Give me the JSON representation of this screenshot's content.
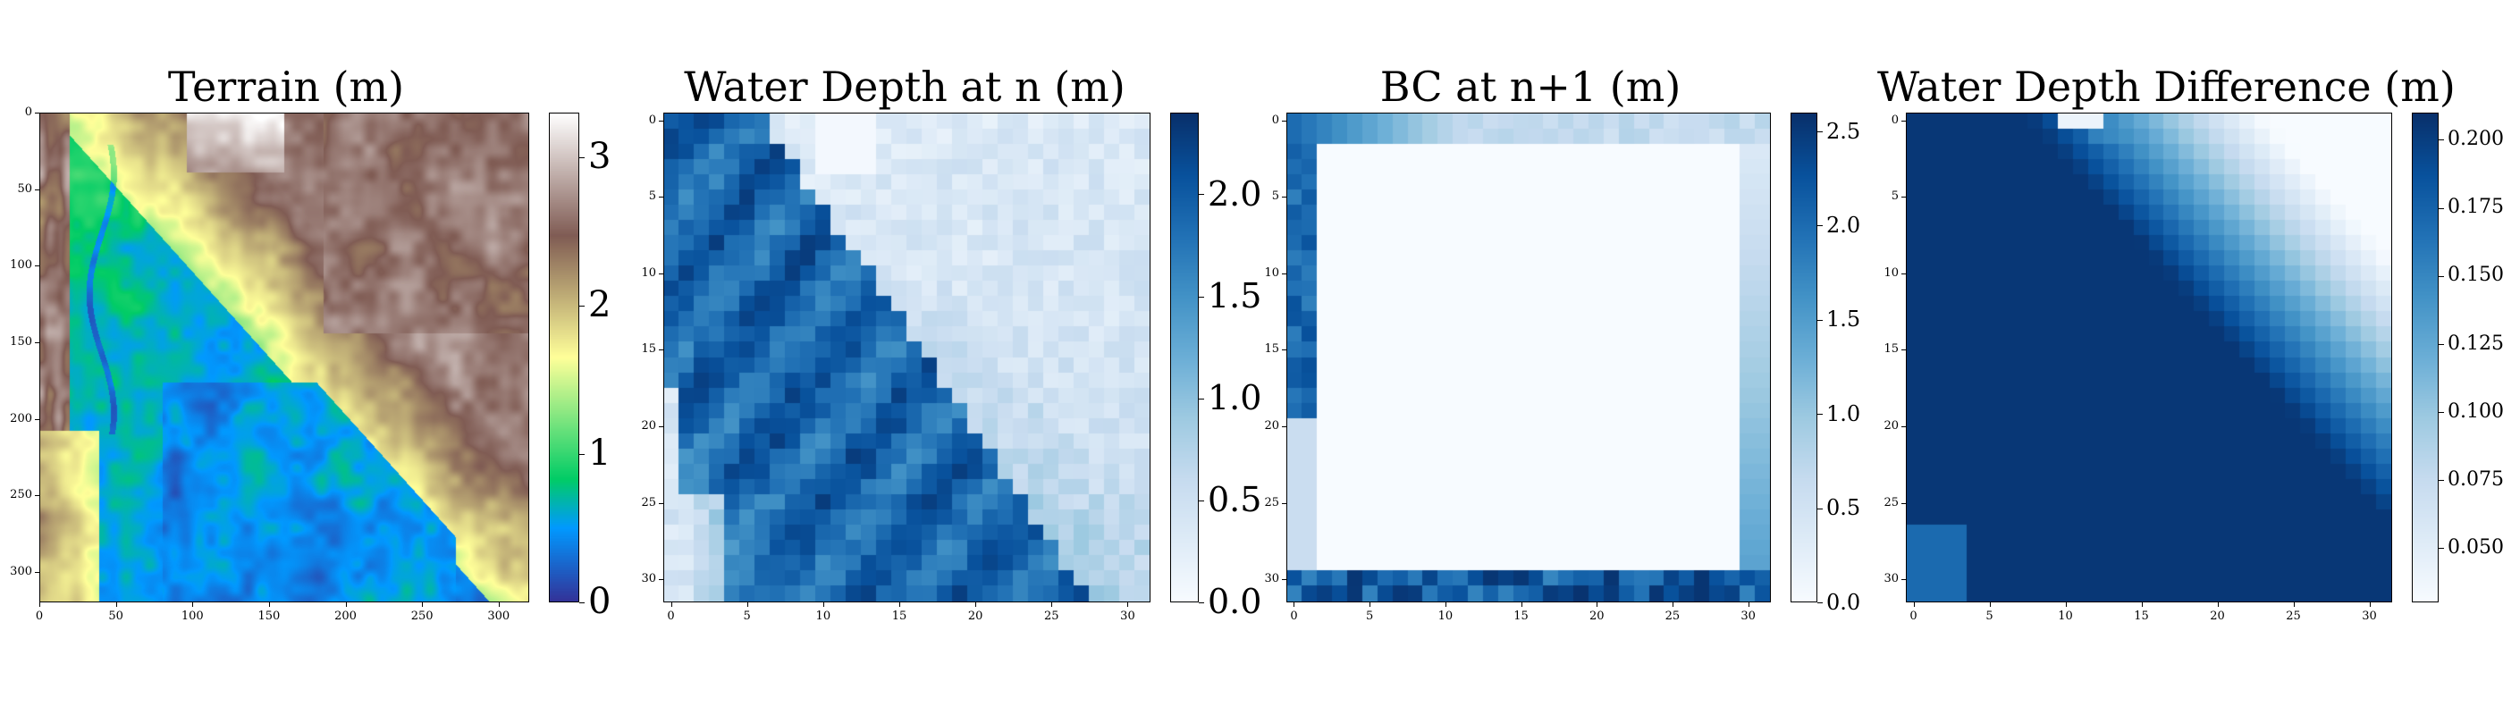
{
  "chart_data": [
    {
      "type": "heatmap",
      "title": "Terrain (m)",
      "colormap": "terrain",
      "grid_size": 320,
      "xlim": [
        0,
        320
      ],
      "ylim": [
        320,
        0
      ],
      "x_ticks": [
        "0",
        "50",
        "100",
        "150",
        "200",
        "250",
        "300"
      ],
      "y_ticks": [
        "0",
        "50",
        "100",
        "150",
        "200",
        "250",
        "300"
      ],
      "colorbar": {
        "min": 0,
        "max": 3.3,
        "ticks": [
          "0",
          "1",
          "2",
          "3"
        ],
        "tick_values": [
          0,
          1,
          2,
          3
        ]
      },
      "description_values": {
        "low_basin_depth": 0.3,
        "ridge_height": 1.6,
        "upper_right_plateau": 2.6,
        "top_peak": 3.3
      }
    },
    {
      "type": "heatmap",
      "title": "Water Depth at n (m)",
      "colormap": "Blues",
      "grid_size": 32,
      "xlim": [
        0,
        31
      ],
      "ylim": [
        31,
        0
      ],
      "x_ticks": [
        "0",
        "5",
        "10",
        "15",
        "20",
        "25",
        "30"
      ],
      "y_ticks": [
        "0",
        "5",
        "10",
        "15",
        "20",
        "25",
        "30"
      ],
      "colorbar": {
        "min": 0,
        "max": 2.4,
        "ticks": [
          "0.0",
          "0.5",
          "1.0",
          "1.5",
          "2.0"
        ],
        "tick_values": [
          0.0,
          0.5,
          1.0,
          1.5,
          2.0
        ]
      }
    },
    {
      "type": "heatmap",
      "title": "BC at n+1 (m)",
      "colormap": "Blues",
      "grid_size": 32,
      "xlim": [
        0,
        31
      ],
      "ylim": [
        31,
        0
      ],
      "x_ticks": [
        "0",
        "5",
        "10",
        "15",
        "20",
        "25",
        "30"
      ],
      "y_ticks": [
        "0",
        "5",
        "10",
        "15",
        "20",
        "25",
        "30"
      ],
      "colorbar": {
        "min": 0,
        "max": 2.6,
        "ticks": [
          "0.0",
          "0.5",
          "1.0",
          "1.5",
          "2.0",
          "2.5"
        ],
        "tick_values": [
          0.0,
          0.5,
          1.0,
          1.5,
          2.0,
          2.5
        ]
      },
      "interior_value": 0.0
    },
    {
      "type": "heatmap",
      "title": "Water Depth Difference (m)",
      "colormap": "Blues",
      "grid_size": 32,
      "xlim": [
        0,
        31
      ],
      "ylim": [
        31,
        0
      ],
      "x_ticks": [
        "0",
        "5",
        "10",
        "15",
        "20",
        "25",
        "30"
      ],
      "y_ticks": [
        "0",
        "5",
        "10",
        "15",
        "20",
        "25",
        "30"
      ],
      "colorbar": {
        "min": 0.03,
        "max": 0.21,
        "ticks": [
          "0.050",
          "0.075",
          "0.100",
          "0.125",
          "0.150",
          "0.175",
          "0.200"
        ],
        "tick_values": [
          0.05,
          0.075,
          0.1,
          0.125,
          0.15,
          0.175,
          0.2
        ]
      }
    }
  ]
}
